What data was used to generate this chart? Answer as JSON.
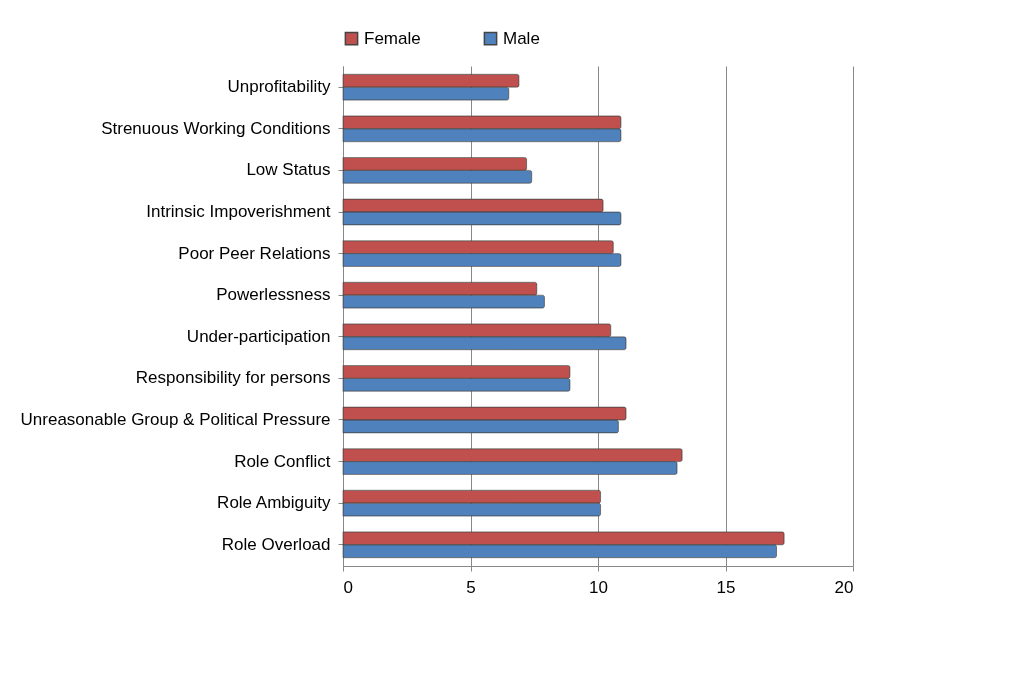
{
  "chart_data": {
    "type": "bar",
    "orientation": "horizontal",
    "categories": [
      "Unprofitability",
      "Strenuous Working Conditions",
      "Low Status",
      "Intrinsic Impoverishment",
      "Poor Peer Relations",
      "Powerlessness",
      "Under-participation",
      "Responsibility for persons",
      "Unreasonable Group & Political Pressure",
      "Role Conflict",
      "Role Ambiguity",
      "Role Overload"
    ],
    "series": [
      {
        "name": "Female",
        "color": "#c0504d",
        "values": [
          6.9,
          10.9,
          7.2,
          10.2,
          10.6,
          7.6,
          10.5,
          8.9,
          11.1,
          13.3,
          10.1,
          17.3
        ]
      },
      {
        "name": "Male",
        "color": "#4f81bd",
        "values": [
          6.5,
          10.9,
          7.4,
          10.9,
          10.9,
          7.9,
          11.1,
          8.9,
          10.8,
          13.1,
          10.1,
          17.0
        ]
      }
    ],
    "xlim": [
      0,
      20
    ],
    "xticks": [
      0,
      5,
      10,
      15,
      20
    ],
    "grid": "x",
    "legend": "top"
  }
}
